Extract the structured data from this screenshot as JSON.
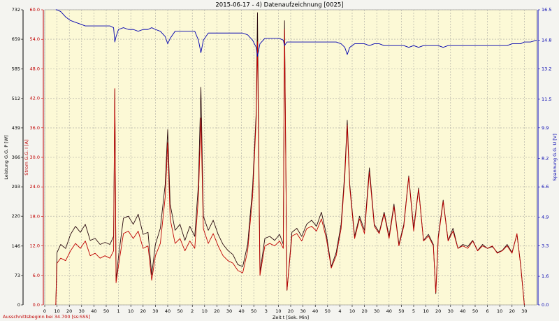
{
  "chart_data": {
    "type": "line",
    "title": "2015-06-17 - 4) Datenaufzeichnung [0025]",
    "ylabel": "Leistung G.G. P [W]",
    "y2label": "Strom G.G. I [A]",
    "y3label": "Spannung G.G. U [V]",
    "xlabel": "Zeit t [Sek. Min]",
    "footnote": "Ausschnittsbeginn bei 34.700 [ss:SSS]",
    "grid": true,
    "xlim": [
      0,
      400
    ],
    "xticks": [
      0,
      10,
      20,
      30,
      40,
      50,
      {
        "value": 60,
        "label": "1"
      },
      {
        "value": 70,
        "label": "10"
      },
      {
        "value": 80,
        "label": "20"
      },
      {
        "value": 90,
        "label": "30"
      },
      {
        "value": 100,
        "label": "40"
      },
      {
        "value": 110,
        "label": "50"
      },
      {
        "value": 120,
        "label": "2"
      },
      {
        "value": 130,
        "label": "10"
      },
      {
        "value": 140,
        "label": "20"
      },
      {
        "value": 150,
        "label": "30"
      },
      {
        "value": 160,
        "label": "40"
      },
      {
        "value": 170,
        "label": "50"
      },
      {
        "value": 180,
        "label": "3"
      },
      {
        "value": 190,
        "label": "10"
      },
      {
        "value": 200,
        "label": "20"
      },
      {
        "value": 210,
        "label": "30"
      },
      {
        "value": 220,
        "label": "40"
      },
      {
        "value": 230,
        "label": "50"
      },
      {
        "value": 240,
        "label": "4"
      },
      {
        "value": 250,
        "label": "10"
      },
      {
        "value": 260,
        "label": "20"
      },
      {
        "value": 270,
        "label": "30"
      },
      {
        "value": 280,
        "label": "40"
      },
      {
        "value": 290,
        "label": "50"
      },
      {
        "value": 300,
        "label": "5"
      },
      {
        "value": 310,
        "label": "10"
      },
      {
        "value": 320,
        "label": "20"
      },
      {
        "value": 330,
        "label": "30"
      },
      {
        "value": 340,
        "label": "40"
      },
      {
        "value": 350,
        "label": "50"
      },
      {
        "value": 360,
        "label": "6"
      },
      {
        "value": 370,
        "label": "10"
      },
      {
        "value": 380,
        "label": "20"
      },
      {
        "value": 390,
        "label": "30"
      }
    ],
    "ylim": [
      0,
      732
    ],
    "yticks": [
      0,
      73,
      146,
      220,
      293,
      366,
      439,
      512,
      585,
      659,
      732
    ],
    "y2lim": [
      0,
      60
    ],
    "y2ticks": [
      {
        "value": 0,
        "label": "0.0"
      },
      {
        "value": 6,
        "label": "6.0"
      },
      {
        "value": 12,
        "label": "12.0"
      },
      {
        "value": 18,
        "label": "18.0"
      },
      {
        "value": 24,
        "label": "24.0"
      },
      {
        "value": 30,
        "label": "30.0"
      },
      {
        "value": 36,
        "label": "36.0"
      },
      {
        "value": 42,
        "label": "42.0"
      },
      {
        "value": 48,
        "label": "48.0"
      },
      {
        "value": 54,
        "label": "54.0"
      },
      {
        "value": 60,
        "label": "60.0"
      }
    ],
    "y3lim": [
      0,
      16.5
    ],
    "y3ticks": [
      {
        "value": 0,
        "label": "0.0"
      },
      1.6,
      3.3,
      4.9,
      6.6,
      8.2,
      9.9,
      11.5,
      13.2,
      14.8,
      16.5
    ],
    "x": [
      9,
      10,
      13,
      17,
      21,
      25,
      29,
      33,
      37,
      41,
      45,
      49,
      53,
      56,
      57,
      58,
      60,
      64,
      68,
      72,
      76,
      80,
      84,
      87,
      90,
      94,
      98,
      100,
      102,
      106,
      110,
      114,
      118,
      122,
      125,
      127,
      129,
      133,
      137,
      141,
      145,
      149,
      153,
      157,
      161,
      165,
      169,
      172,
      173,
      175,
      179,
      183,
      187,
      191,
      194,
      195,
      197,
      201,
      205,
      209,
      213,
      217,
      221,
      225,
      229,
      233,
      237,
      241,
      244,
      246,
      248,
      252,
      256,
      260,
      264,
      268,
      272,
      276,
      280,
      284,
      288,
      292,
      296,
      300,
      304,
      308,
      312,
      316,
      318,
      320,
      324,
      328,
      332,
      336,
      340,
      344,
      348,
      352,
      356,
      360,
      364,
      368,
      372,
      376,
      380,
      384,
      387,
      390,
      395,
      400
    ],
    "series": [
      {
        "name": "Leistung",
        "color": "#2a0a10",
        "axis": "y",
        "values": [
          0,
          130,
          150,
          140,
          175,
          195,
          180,
          200,
          160,
          165,
          150,
          155,
          150,
          170,
          535,
          60,
          120,
          215,
          220,
          200,
          225,
          175,
          180,
          75,
          150,
          190,
          300,
          435,
          250,
          185,
          200,
          160,
          195,
          170,
          300,
          540,
          220,
          185,
          210,
          175,
          150,
          135,
          125,
          100,
          95,
          150,
          290,
          480,
          725,
          80,
          165,
          170,
          160,
          175,
          150,
          705,
          36,
          180,
          190,
          170,
          200,
          210,
          195,
          230,
          175,
          95,
          130,
          200,
          330,
          458,
          300,
          170,
          220,
          185,
          340,
          200,
          180,
          230,
          170,
          250,
          150,
          200,
          320,
          190,
          290,
          160,
          175,
          150,
          28,
          170,
          260,
          160,
          190,
          140,
          150,
          145,
          160,
          135,
          150,
          140,
          145,
          130,
          135,
          150,
          130,
          175,
          100,
          0,
          null,
          null
        ]
      },
      {
        "name": "Strom",
        "color": "#c00000",
        "axis": "y2",
        "values": [
          0,
          8.5,
          9.5,
          9.0,
          11.0,
          12.5,
          11.5,
          13.0,
          10.0,
          10.5,
          9.5,
          10.0,
          9.5,
          11.0,
          44.0,
          4.5,
          8.0,
          14.5,
          15.0,
          13.5,
          15.0,
          11.5,
          12.0,
          5.0,
          10.0,
          12.5,
          22.0,
          33.0,
          17.5,
          12.5,
          13.5,
          11.0,
          13.0,
          11.5,
          22.0,
          38.0,
          15.5,
          12.5,
          14.5,
          12.0,
          10.0,
          9.0,
          8.5,
          7.0,
          6.5,
          11.0,
          22.0,
          38.0,
          53.5,
          6.0,
          12.0,
          12.5,
          12.0,
          13.0,
          11.5,
          56.0,
          3.0,
          14.0,
          14.5,
          13.0,
          15.5,
          16.0,
          15.0,
          17.5,
          13.5,
          7.5,
          10.0,
          15.5,
          26.0,
          36.5,
          24.0,
          13.5,
          17.5,
          14.5,
          27.0,
          16.0,
          14.5,
          18.5,
          13.5,
          20.0,
          12.0,
          16.0,
          26.0,
          15.0,
          23.5,
          13.0,
          14.0,
          12.0,
          2.5,
          13.5,
          21.0,
          13.0,
          15.0,
          11.5,
          12.0,
          11.5,
          13.0,
          11.0,
          12.0,
          11.5,
          12.0,
          10.5,
          11.0,
          12.0,
          10.5,
          14.5,
          8.0,
          0,
          null,
          null
        ]
      },
      {
        "name": "Spannung",
        "color": "#0000b0",
        "axis": "y3",
        "values": [
          16.5,
          16.5,
          16.4,
          16.1,
          15.9,
          15.8,
          15.7,
          15.6,
          15.6,
          15.6,
          15.6,
          15.6,
          15.6,
          15.5,
          14.7,
          15.0,
          15.4,
          15.5,
          15.4,
          15.4,
          15.3,
          15.4,
          15.4,
          15.5,
          15.4,
          15.3,
          15.0,
          14.6,
          14.9,
          15.3,
          15.3,
          15.3,
          15.3,
          15.3,
          14.8,
          14.1,
          14.8,
          15.2,
          15.2,
          15.2,
          15.2,
          15.2,
          15.2,
          15.2,
          15.2,
          15.1,
          14.8,
          14.4,
          13.9,
          14.6,
          14.9,
          14.9,
          14.9,
          14.9,
          14.8,
          14.5,
          14.7,
          14.7,
          14.7,
          14.7,
          14.7,
          14.7,
          14.7,
          14.7,
          14.7,
          14.7,
          14.7,
          14.6,
          14.4,
          14.0,
          14.4,
          14.6,
          14.6,
          14.6,
          14.5,
          14.6,
          14.6,
          14.5,
          14.5,
          14.5,
          14.5,
          14.5,
          14.4,
          14.5,
          14.4,
          14.5,
          14.5,
          14.5,
          14.5,
          14.5,
          14.4,
          14.5,
          14.5,
          14.5,
          14.5,
          14.5,
          14.5,
          14.5,
          14.5,
          14.5,
          14.5,
          14.5,
          14.5,
          14.5,
          14.6,
          14.6,
          14.6,
          14.7,
          14.7,
          14.8
        ]
      }
    ]
  }
}
